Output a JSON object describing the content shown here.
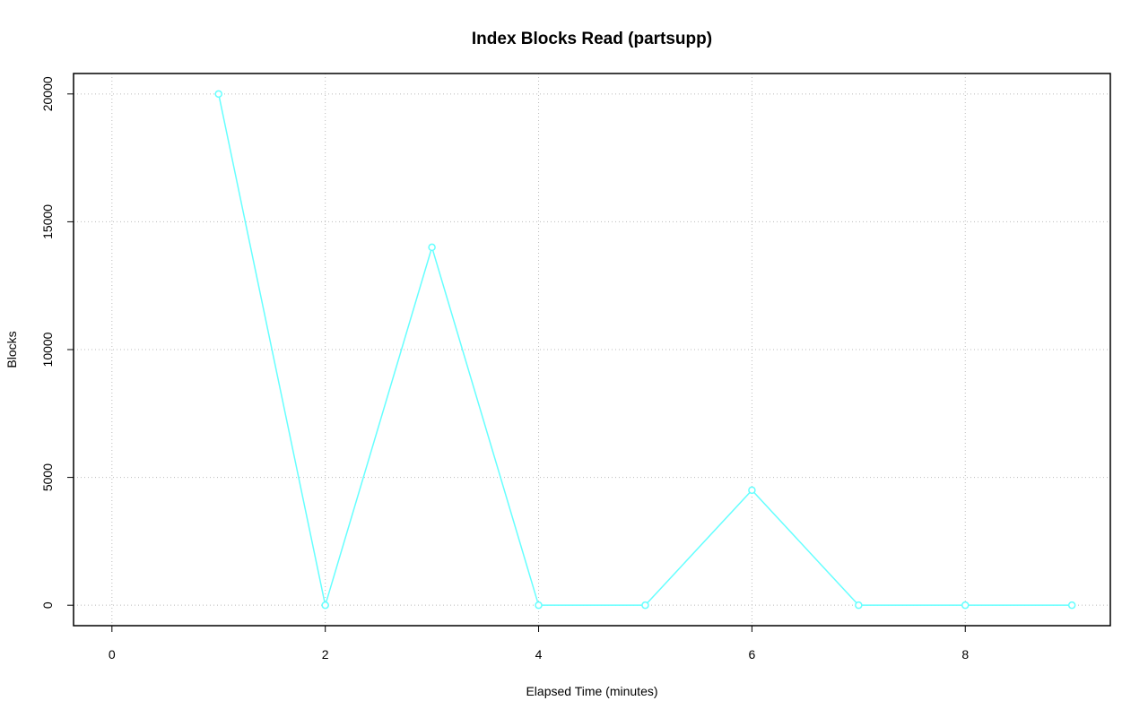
{
  "chart_data": {
    "type": "line",
    "title": "Index Blocks Read (partsupp)",
    "x_label": "Elapsed Time (minutes)",
    "y_label": "Blocks",
    "x": [
      1,
      2,
      3,
      4,
      5,
      6,
      7,
      8,
      9
    ],
    "series": [
      {
        "name": "Blocks",
        "color": "#66ffff",
        "values": [
          20000,
          0,
          14000,
          0,
          0,
          4500,
          0,
          0,
          0
        ]
      }
    ],
    "xlim": [
      -0.36,
      9.36
    ],
    "ylim": [
      -800,
      20800
    ],
    "xticks": [
      0,
      2,
      4,
      6,
      8
    ],
    "yticks": [
      0,
      5000,
      10000,
      15000,
      20000
    ],
    "grid": true
  }
}
